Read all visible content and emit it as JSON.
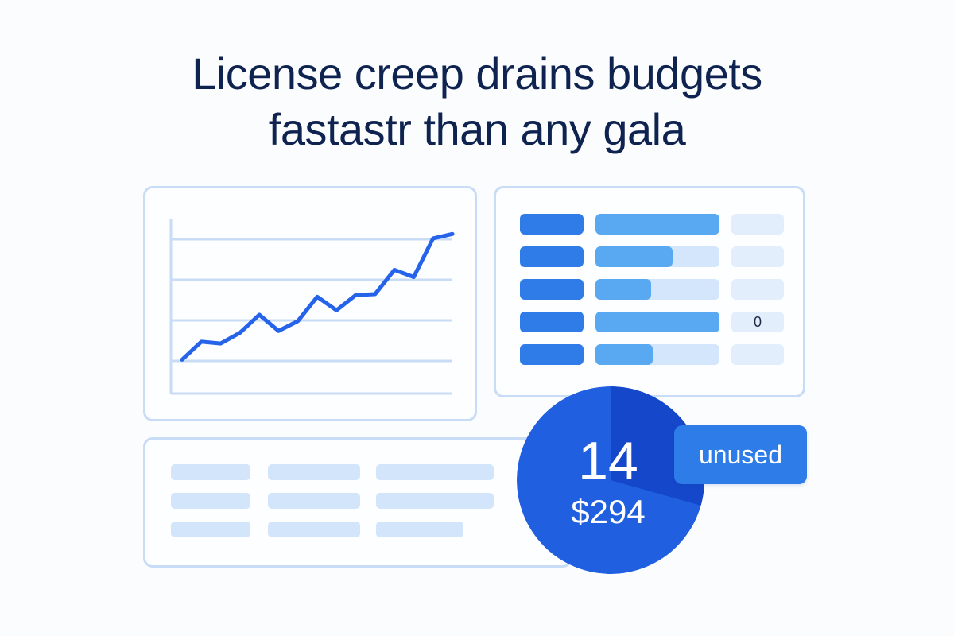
{
  "headline": {
    "line1": "License creep drains budgets",
    "line2": "fastastr  than any gala"
  },
  "line_panel": {
    "series_color": "#2563eb",
    "trend": [
      2,
      4,
      3.8,
      5,
      7,
      5.2,
      6.3,
      9,
      7.5,
      9.2,
      9.3,
      12,
      11.2,
      15.5,
      16
    ]
  },
  "license_table": {
    "rows": [
      {
        "usage": 1.0,
        "value": ""
      },
      {
        "usage": 0.62,
        "value": ""
      },
      {
        "usage": 0.45,
        "value": ""
      },
      {
        "usage": 1.0,
        "value": "0"
      },
      {
        "usage": 0.46,
        "value": ""
      }
    ],
    "colors": {
      "key": "#2f7ce9",
      "track": "#d3e6fb",
      "fill": "#58a8f2"
    }
  },
  "list_panel": {
    "rows": 3
  },
  "donut": {
    "count": "14",
    "amount": "$294",
    "colors": {
      "main": "#1f5fe0",
      "slice": "#1447c9"
    }
  },
  "badge": {
    "label": "unused",
    "color": "#2e7ce8"
  }
}
